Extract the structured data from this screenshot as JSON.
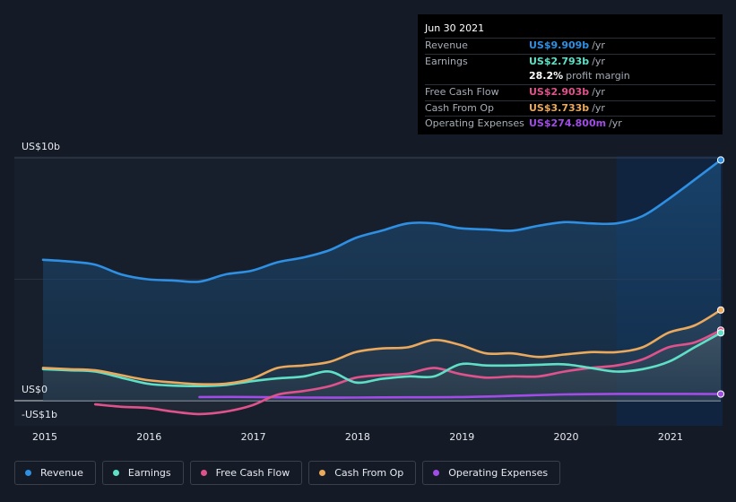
{
  "tooltip": {
    "date": "Jun 30 2021",
    "rows": [
      {
        "name": "Revenue",
        "value": "US$9.909b",
        "unit": "/yr",
        "color": "#2e8fe3"
      },
      {
        "name": "Earnings",
        "value": "US$2.793b",
        "unit": "/yr",
        "color": "#5fe0c6"
      },
      {
        "name": "",
        "value": "28.2%",
        "unit": "profit margin",
        "color": "#ffffff"
      },
      {
        "name": "Free Cash Flow",
        "value": "US$2.903b",
        "unit": "/yr",
        "color": "#e0528c"
      },
      {
        "name": "Cash From Op",
        "value": "US$3.733b",
        "unit": "/yr",
        "color": "#eaa95c"
      },
      {
        "name": "Operating Expenses",
        "value": "US$274.800m",
        "unit": "/yr",
        "color": "#a24ce8"
      }
    ]
  },
  "legend": [
    {
      "label": "Revenue",
      "color": "#2e8fe3"
    },
    {
      "label": "Earnings",
      "color": "#5fe0c6"
    },
    {
      "label": "Free Cash Flow",
      "color": "#e0528c"
    },
    {
      "label": "Cash From Op",
      "color": "#eaa95c"
    },
    {
      "label": "Operating Expenses",
      "color": "#a24ce8"
    }
  ],
  "chart_data": {
    "type": "area",
    "title": "",
    "xlabel": "",
    "ylabel": "",
    "x_range": [
      2015.0,
      2021.5
    ],
    "ylim": [
      -1,
      10
    ],
    "y_ticks": [
      {
        "value": 10,
        "label": "US$10b"
      },
      {
        "value": 0,
        "label": "US$0"
      },
      {
        "value": -1,
        "label": "-US$1b"
      }
    ],
    "x_ticks": [
      {
        "value": 2015,
        "label": "2015"
      },
      {
        "value": 2016,
        "label": "2016"
      },
      {
        "value": 2017,
        "label": "2017"
      },
      {
        "value": 2018,
        "label": "2018"
      },
      {
        "value": 2019,
        "label": "2019"
      },
      {
        "value": 2020,
        "label": "2020"
      },
      {
        "value": 2021,
        "label": "2021"
      }
    ],
    "forecast_start": 2020.5,
    "series": [
      {
        "name": "Revenue",
        "color": "#2e8fe3",
        "points": [
          [
            2015.0,
            5.8
          ],
          [
            2015.25,
            5.73
          ],
          [
            2015.5,
            5.6
          ],
          [
            2015.75,
            5.2
          ],
          [
            2016.0,
            5.0
          ],
          [
            2016.25,
            4.95
          ],
          [
            2016.5,
            4.9
          ],
          [
            2016.75,
            5.2
          ],
          [
            2017.0,
            5.35
          ],
          [
            2017.25,
            5.7
          ],
          [
            2017.5,
            5.9
          ],
          [
            2017.75,
            6.2
          ],
          [
            2018.0,
            6.7
          ],
          [
            2018.25,
            7.0
          ],
          [
            2018.5,
            7.3
          ],
          [
            2018.75,
            7.3
          ],
          [
            2019.0,
            7.1
          ],
          [
            2019.25,
            7.05
          ],
          [
            2019.5,
            7.0
          ],
          [
            2019.75,
            7.2
          ],
          [
            2020.0,
            7.35
          ],
          [
            2020.25,
            7.3
          ],
          [
            2020.5,
            7.3
          ],
          [
            2020.75,
            7.6
          ],
          [
            2021.0,
            8.3
          ],
          [
            2021.25,
            9.1
          ],
          [
            2021.5,
            9.909
          ]
        ]
      },
      {
        "name": "Earnings",
        "color": "#5fe0c6",
        "points": [
          [
            2015.0,
            1.3
          ],
          [
            2015.25,
            1.25
          ],
          [
            2015.5,
            1.2
          ],
          [
            2015.75,
            0.95
          ],
          [
            2016.0,
            0.7
          ],
          [
            2016.25,
            0.62
          ],
          [
            2016.5,
            0.6
          ],
          [
            2016.75,
            0.65
          ],
          [
            2017.0,
            0.8
          ],
          [
            2017.25,
            0.92
          ],
          [
            2017.5,
            1.0
          ],
          [
            2017.75,
            1.2
          ],
          [
            2018.0,
            0.75
          ],
          [
            2018.25,
            0.9
          ],
          [
            2018.5,
            1.0
          ],
          [
            2018.75,
            1.0
          ],
          [
            2019.0,
            1.5
          ],
          [
            2019.25,
            1.45
          ],
          [
            2019.5,
            1.45
          ],
          [
            2019.75,
            1.48
          ],
          [
            2020.0,
            1.5
          ],
          [
            2020.25,
            1.35
          ],
          [
            2020.5,
            1.2
          ],
          [
            2020.75,
            1.3
          ],
          [
            2021.0,
            1.6
          ],
          [
            2021.25,
            2.2
          ],
          [
            2021.5,
            2.793
          ]
        ]
      },
      {
        "name": "Free Cash Flow",
        "color": "#e0528c",
        "points": [
          [
            2015.5,
            -0.15
          ],
          [
            2015.75,
            -0.25
          ],
          [
            2016.0,
            -0.3
          ],
          [
            2016.25,
            -0.45
          ],
          [
            2016.5,
            -0.55
          ],
          [
            2016.75,
            -0.45
          ],
          [
            2017.0,
            -0.2
          ],
          [
            2017.25,
            0.25
          ],
          [
            2017.5,
            0.4
          ],
          [
            2017.75,
            0.6
          ],
          [
            2018.0,
            0.95
          ],
          [
            2018.25,
            1.05
          ],
          [
            2018.5,
            1.12
          ],
          [
            2018.75,
            1.35
          ],
          [
            2019.0,
            1.1
          ],
          [
            2019.25,
            0.95
          ],
          [
            2019.5,
            1.0
          ],
          [
            2019.75,
            1.0
          ],
          [
            2020.0,
            1.2
          ],
          [
            2020.25,
            1.35
          ],
          [
            2020.5,
            1.45
          ],
          [
            2020.75,
            1.7
          ],
          [
            2021.0,
            2.2
          ],
          [
            2021.25,
            2.4
          ],
          [
            2021.5,
            2.903
          ]
        ]
      },
      {
        "name": "Cash From Op",
        "color": "#eaa95c",
        "points": [
          [
            2015.0,
            1.35
          ],
          [
            2015.25,
            1.3
          ],
          [
            2015.5,
            1.25
          ],
          [
            2015.75,
            1.05
          ],
          [
            2016.0,
            0.85
          ],
          [
            2016.25,
            0.75
          ],
          [
            2016.5,
            0.68
          ],
          [
            2016.75,
            0.7
          ],
          [
            2017.0,
            0.9
          ],
          [
            2017.25,
            1.35
          ],
          [
            2017.5,
            1.45
          ],
          [
            2017.75,
            1.6
          ],
          [
            2018.0,
            2.0
          ],
          [
            2018.25,
            2.15
          ],
          [
            2018.5,
            2.2
          ],
          [
            2018.75,
            2.5
          ],
          [
            2019.0,
            2.3
          ],
          [
            2019.25,
            1.95
          ],
          [
            2019.5,
            1.95
          ],
          [
            2019.75,
            1.8
          ],
          [
            2020.0,
            1.9
          ],
          [
            2020.25,
            2.0
          ],
          [
            2020.5,
            2.0
          ],
          [
            2020.75,
            2.2
          ],
          [
            2021.0,
            2.8
          ],
          [
            2021.25,
            3.1
          ],
          [
            2021.5,
            3.733
          ]
        ]
      },
      {
        "name": "Operating Expenses",
        "color": "#a24ce8",
        "points": [
          [
            2016.5,
            0.15
          ],
          [
            2017.0,
            0.15
          ],
          [
            2017.5,
            0.13
          ],
          [
            2018.0,
            0.13
          ],
          [
            2018.5,
            0.14
          ],
          [
            2019.0,
            0.15
          ],
          [
            2019.5,
            0.2
          ],
          [
            2020.0,
            0.26
          ],
          [
            2020.5,
            0.28
          ],
          [
            2021.0,
            0.28
          ],
          [
            2021.5,
            0.2748
          ]
        ]
      }
    ]
  }
}
